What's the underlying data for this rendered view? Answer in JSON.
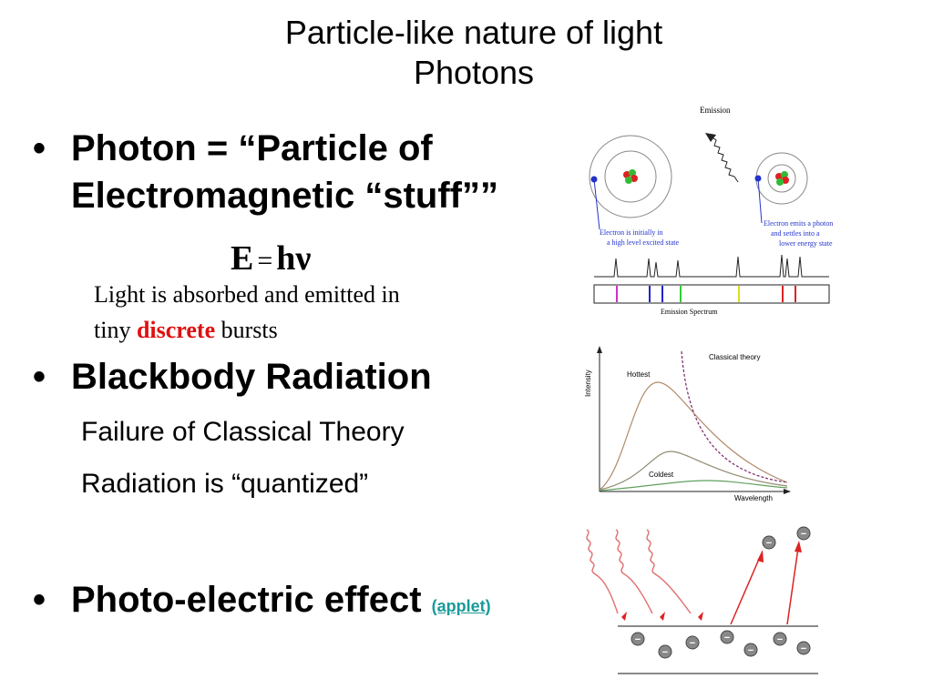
{
  "title": {
    "line1": "Particle-like nature of light",
    "line2": "Photons"
  },
  "bullets": {
    "b1_line1": "Photon = “Particle of",
    "b1_line2": "Electromagnetic “stuff””",
    "equation": {
      "E": "E",
      "eq": "=",
      "h": "h",
      "nu": "ν"
    },
    "absorbed_line1": "Light is absorbed and emitted in",
    "absorbed_line2_pre": "tiny",
    "absorbed_discrete": "discrete",
    "absorbed_line2_post": "bursts",
    "b2": "Blackbody Radiation",
    "b2_sub1": "Failure of Classical Theory",
    "b2_sub2": "Radiation is “quantized”",
    "b3": "Photo-electric effect",
    "b3_link": "(applet)",
    "bullet_char": "•"
  },
  "emission_figure": {
    "title": "Emission",
    "label_left_1": "Electron is initially in",
    "label_left_2": "a high level excited state",
    "label_right_1": "Electron emits a photon",
    "label_right_2": "and settles into a",
    "label_right_3": "lower energy state",
    "spectrum_label": "Emission Spectrum",
    "line_colors": [
      "#cc33cc",
      "#2222cc",
      "#2222cc",
      "#33cc33",
      "#dddd22",
      "#dd2222",
      "#dd2222"
    ]
  },
  "blackbody_figure": {
    "classical_label": "Classical theory",
    "hottest_label": "Hottest",
    "coldest_label": "Coldest",
    "ylabel": "Intensity",
    "xlabel": "Wavelength"
  },
  "photoelectric_figure": {
    "electron_symbol": "−"
  }
}
